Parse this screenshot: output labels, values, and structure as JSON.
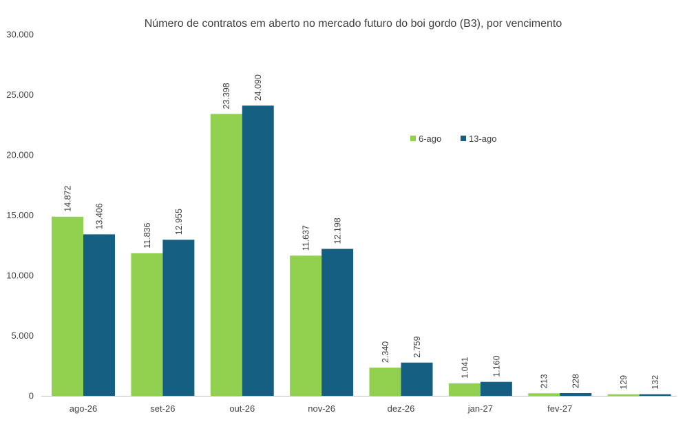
{
  "chart_data": {
    "type": "bar",
    "title": "Número de contratos em aberto no mercado futuro do boi gordo (B3), por vencimento",
    "xlabel": "",
    "ylabel": "",
    "categories": [
      "ago-26",
      "set-26",
      "out-26",
      "nov-26",
      "dez-26",
      "jan-27",
      "fev-27",
      ""
    ],
    "series": [
      {
        "name": "6-ago",
        "color": "#92D050",
        "values": [
          14872,
          11836,
          23398,
          11637,
          2340,
          1041,
          213,
          129
        ],
        "labels": [
          "14.872",
          "11.836",
          "23.398",
          "11.637",
          "2.340",
          "1.041",
          "213",
          "129"
        ]
      },
      {
        "name": "13-ago",
        "color": "#156082",
        "values": [
          13406,
          12955,
          24090,
          12198,
          2759,
          1160,
          228,
          132
        ],
        "labels": [
          "13.406",
          "12.955",
          "24.090",
          "12.198",
          "2.759",
          "1.160",
          "228",
          "132"
        ]
      }
    ],
    "ylim": [
      0,
      30000
    ],
    "yticks": [
      0,
      5000,
      10000,
      15000,
      20000,
      25000,
      30000
    ],
    "ytick_labels": [
      "0",
      "5.000",
      "10.000",
      "15.000",
      "20.000",
      "25.000",
      "30.000"
    ],
    "grid": false,
    "legend_position": "upper-right-inside",
    "axis_color": "#BFBFBF"
  }
}
